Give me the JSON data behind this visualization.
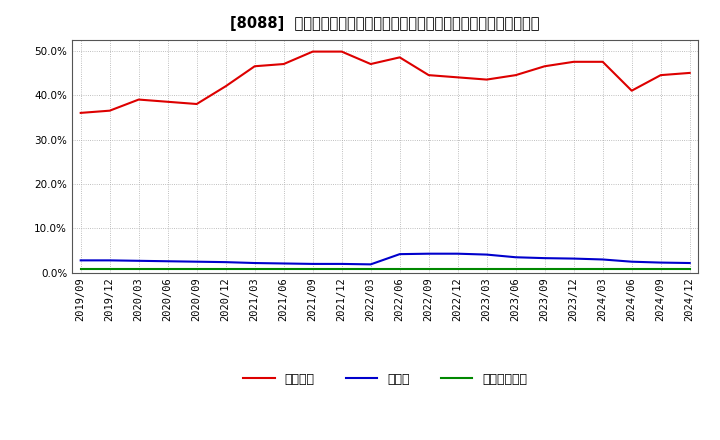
{
  "title": "[8088]  自己資本、のれん、繰延税金資産の総資産に対する比率の推移",
  "x_labels": [
    "2019/09",
    "2019/12",
    "2020/03",
    "2020/06",
    "2020/09",
    "2020/12",
    "2021/03",
    "2021/06",
    "2021/09",
    "2021/12",
    "2022/03",
    "2022/06",
    "2022/09",
    "2022/12",
    "2023/03",
    "2023/06",
    "2023/09",
    "2023/12",
    "2024/03",
    "2024/06",
    "2024/09",
    "2024/12"
  ],
  "equity": [
    36.0,
    36.5,
    39.0,
    38.5,
    38.0,
    42.0,
    46.5,
    47.0,
    49.8,
    49.8,
    47.0,
    48.5,
    44.5,
    44.0,
    43.5,
    44.5,
    46.5,
    47.5,
    47.5,
    41.0,
    44.5,
    45.0
  ],
  "goodwill": [
    2.8,
    2.8,
    2.7,
    2.6,
    2.5,
    2.4,
    2.2,
    2.1,
    2.0,
    2.0,
    1.9,
    4.2,
    4.3,
    4.3,
    4.1,
    3.5,
    3.3,
    3.2,
    3.0,
    2.5,
    2.3,
    2.2
  ],
  "deferred_tax": [
    0.8,
    0.8,
    0.8,
    0.8,
    0.8,
    0.8,
    0.8,
    0.8,
    0.8,
    0.8,
    0.8,
    0.8,
    0.8,
    0.8,
    0.8,
    0.8,
    0.8,
    0.8,
    0.8,
    0.8,
    0.8,
    0.8
  ],
  "equity_color": "#dd0000",
  "goodwill_color": "#0000cc",
  "deferred_tax_color": "#008800",
  "legend_equity": "自己資本",
  "legend_goodwill": "のれん",
  "legend_deferred_tax": "繰延税金資産",
  "ylim": [
    0.0,
    52.5
  ],
  "yticks": [
    0.0,
    10.0,
    20.0,
    30.0,
    40.0,
    50.0
  ],
  "background_color": "#ffffff",
  "plot_bg_color": "#ffffff",
  "grid_color": "#aaaaaa",
  "title_fontsize": 10.5,
  "axis_fontsize": 7.5,
  "legend_fontsize": 9
}
